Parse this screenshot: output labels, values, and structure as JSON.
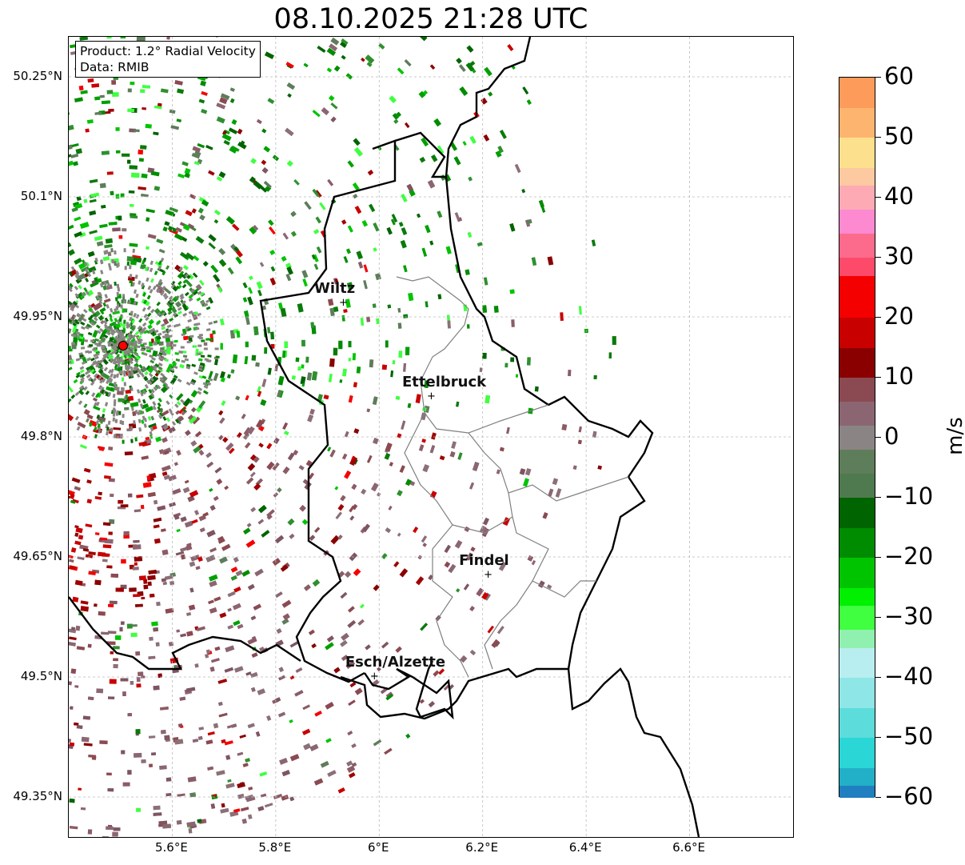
{
  "title": "08.10.2025 21:28 UTC",
  "info_box": {
    "product": "Product: 1.2° Radial Velocity",
    "source": "Data: RMIB"
  },
  "map": {
    "lon_range": [
      5.4,
      6.8
    ],
    "lat_range": [
      49.3,
      50.3
    ],
    "x_ticks": [
      {
        "value": 5.6,
        "label": "5.6°E"
      },
      {
        "value": 5.8,
        "label": "5.8°E"
      },
      {
        "value": 6.0,
        "label": "6°E"
      },
      {
        "value": 6.2,
        "label": "6.2°E"
      },
      {
        "value": 6.4,
        "label": "6.4°E"
      },
      {
        "value": 6.6,
        "label": "6.6°E"
      }
    ],
    "y_ticks": [
      {
        "value": 50.25,
        "label": "50.25°N"
      },
      {
        "value": 50.1,
        "label": "50.1°N"
      },
      {
        "value": 49.95,
        "label": "49.95°N"
      },
      {
        "value": 49.8,
        "label": "49.8°N"
      },
      {
        "value": 49.65,
        "label": "49.65°N"
      },
      {
        "value": 49.5,
        "label": "49.5°N"
      },
      {
        "value": 49.35,
        "label": "49.35°N"
      }
    ],
    "radar_site": {
      "lon": 5.505,
      "lat": 49.914
    },
    "cities": [
      {
        "name": "Wiltz",
        "lon": 5.93,
        "lat": 49.967
      },
      {
        "name": "Ettelbruck",
        "lon": 6.1,
        "lat": 49.85
      },
      {
        "name": "Findel",
        "lon": 6.21,
        "lat": 49.627
      },
      {
        "name": "Esch/Alzette",
        "lon": 5.99,
        "lat": 49.5
      }
    ]
  },
  "colorbar": {
    "unit": "m/s",
    "min": -60,
    "max": 60,
    "ticks": [
      "60",
      "50",
      "40",
      "30",
      "20",
      "10",
      "0",
      "−10",
      "−20",
      "−30",
      "−40",
      "−50",
      "−60"
    ],
    "tick_values": [
      60,
      50,
      40,
      30,
      20,
      10,
      0,
      -10,
      -20,
      -30,
      -40,
      -50,
      -60
    ],
    "stops": [
      {
        "from": 55,
        "to": 60,
        "color": "#fd9c5a"
      },
      {
        "from": 50,
        "to": 55,
        "color": "#fdb46f"
      },
      {
        "from": 45,
        "to": 50,
        "color": "#fde08e"
      },
      {
        "from": 42,
        "to": 45,
        "color": "#fdc9a0"
      },
      {
        "from": 38,
        "to": 42,
        "color": "#fdaab5"
      },
      {
        "from": 34,
        "to": 38,
        "color": "#fd8ad0"
      },
      {
        "from": 30,
        "to": 34,
        "color": "#fd6b8c"
      },
      {
        "from": 27,
        "to": 30,
        "color": "#fd4a6a"
      },
      {
        "from": 20,
        "to": 27,
        "color": "#f50000"
      },
      {
        "from": 15,
        "to": 20,
        "color": "#c80000"
      },
      {
        "from": 10,
        "to": 15,
        "color": "#8a0000"
      },
      {
        "from": 6,
        "to": 10,
        "color": "#8b4a52"
      },
      {
        "from": 2,
        "to": 6,
        "color": "#8b6672"
      },
      {
        "from": -2,
        "to": 2,
        "color": "#8b8484"
      },
      {
        "from": -6,
        "to": -2,
        "color": "#5e7d5a"
      },
      {
        "from": -10,
        "to": -6,
        "color": "#4f7a4f"
      },
      {
        "from": -15,
        "to": -10,
        "color": "#006400"
      },
      {
        "from": -20,
        "to": -15,
        "color": "#008c00"
      },
      {
        "from": -25,
        "to": -20,
        "color": "#00c400"
      },
      {
        "from": -28,
        "to": -25,
        "color": "#00f000"
      },
      {
        "from": -32,
        "to": -28,
        "color": "#40ff40"
      },
      {
        "from": -35,
        "to": -32,
        "color": "#90f0b0"
      },
      {
        "from": -40,
        "to": -35,
        "color": "#b8eef0"
      },
      {
        "from": -45,
        "to": -40,
        "color": "#8ee6e6"
      },
      {
        "from": -50,
        "to": -45,
        "color": "#5ddcdc"
      },
      {
        "from": -55,
        "to": -50,
        "color": "#2ad6d6"
      },
      {
        "from": -58,
        "to": -55,
        "color": "#22b0c8"
      },
      {
        "from": -60,
        "to": -58,
        "color": "#1f7fc0"
      }
    ]
  },
  "colors": {
    "border_national": "#000000",
    "border_canton": "#808080",
    "grid": "#bbbbbb",
    "radar_site": "#ff0000"
  }
}
